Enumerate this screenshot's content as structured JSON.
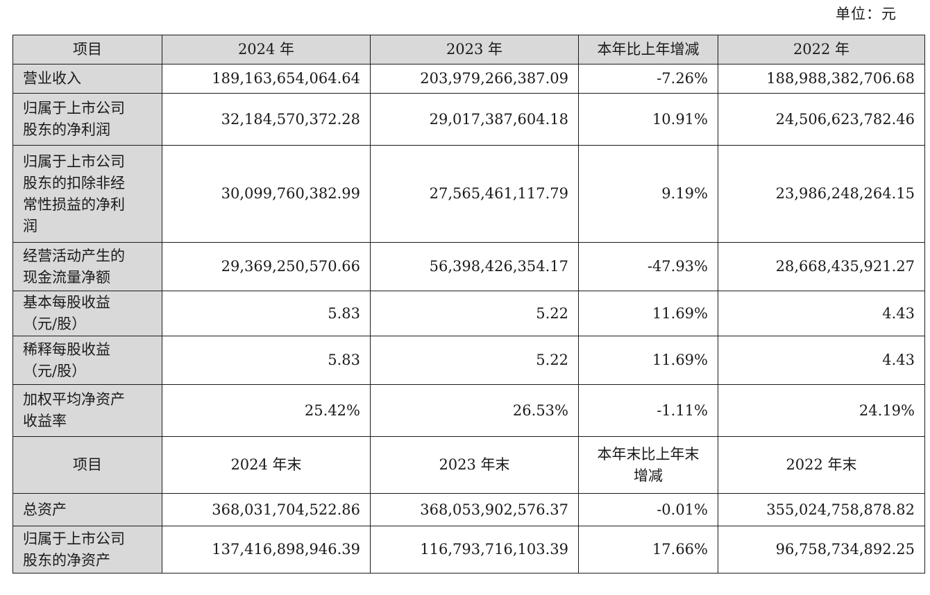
{
  "unit_label": "单位：元",
  "header1": {
    "item": "项目",
    "col1": "2024 年",
    "col2": "2023 年",
    "col3": "本年比上年增减",
    "col4": "2022 年"
  },
  "header2": {
    "item": "项目",
    "col1": "2024 年末",
    "col2": "2023 年末",
    "col3_line1": "本年末比上年末",
    "col3_line2": "增减",
    "col4": "2022 年末"
  },
  "rows": [
    {
      "label_lines": [
        "营业收入"
      ],
      "v2024": "189,163,654,064.64",
      "v2023": "203,979,266,387.09",
      "change": "-7.26%",
      "v2022": "188,988,382,706.68"
    },
    {
      "label_lines": [
        "归属于上市公司",
        "股东的净利润"
      ],
      "v2024": "32,184,570,372.28",
      "v2023": "29,017,387,604.18",
      "change": "10.91%",
      "v2022": "24,506,623,782.46"
    },
    {
      "label_lines": [
        "归属于上市公司",
        "股东的扣除非经",
        "常性损益的净利",
        "润"
      ],
      "v2024": "30,099,760,382.99",
      "v2023": "27,565,461,117.79",
      "change": "9.19%",
      "v2022": "23,986,248,264.15"
    },
    {
      "label_lines": [
        "经营活动产生的",
        "现金流量净额"
      ],
      "v2024": "29,369,250,570.66",
      "v2023": "56,398,426,354.17",
      "change": "-47.93%",
      "v2022": "28,668,435,921.27"
    },
    {
      "label_lines": [
        "基本每股收益",
        "（元/股）"
      ],
      "v2024": "5.83",
      "v2023": "5.22",
      "change": "11.69%",
      "v2022": "4.43"
    },
    {
      "label_lines": [
        "稀释每股收益",
        "（元/股）"
      ],
      "v2024": "5.83",
      "v2023": "5.22",
      "change": "11.69%",
      "v2022": "4.43"
    },
    {
      "label_lines": [
        "加权平均净资产",
        "收益率"
      ],
      "v2024": "25.42%",
      "v2023": "26.53%",
      "change": "-1.11%",
      "v2022": "24.19%"
    }
  ],
  "rows2": [
    {
      "label_lines": [
        "总资产"
      ],
      "v2024": "368,031,704,522.86",
      "v2023": "368,053,902,576.37",
      "change": "-0.01%",
      "v2022": "355,024,758,878.82"
    },
    {
      "label_lines": [
        "归属于上市公司",
        "股东的净资产"
      ],
      "v2024": "137,416,898,946.39",
      "v2023": "116,793,716,103.39",
      "change": "17.66%",
      "v2022": "96,758,734,892.25"
    }
  ]
}
